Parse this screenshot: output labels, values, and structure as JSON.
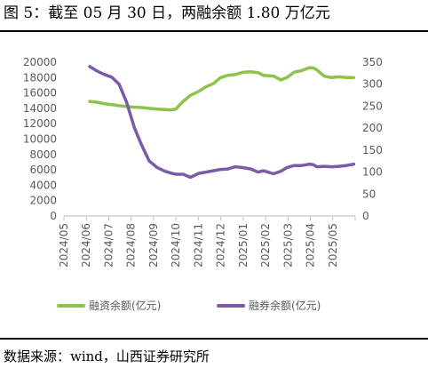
{
  "header": {
    "title": "图 5：截至 05 月 30 日，两融余额 1.80 万亿元"
  },
  "footer": {
    "source": "数据来源：wind，山西证券研究所"
  },
  "colors": {
    "financing": "#8DC34A",
    "securities": "#7B5BA6",
    "axis_text": "#595959",
    "axis_line": "#BFBFBF"
  },
  "chart_data": {
    "type": "line",
    "title": "",
    "xlabel": "",
    "ylabel": "",
    "categories": [
      "2024/05",
      "2024/06",
      "2024/07",
      "2024/08",
      "2024/09",
      "2024/10",
      "2024/11",
      "2024/12",
      "2025/01",
      "2025/02",
      "2025/03",
      "2025/04",
      "2025/05"
    ],
    "y_left": {
      "min": 0,
      "max": 20000,
      "ticks": [
        "0",
        "2000",
        "4000",
        "6000",
        "8000",
        "10000",
        "12000",
        "14000",
        "16000",
        "18000",
        "20000"
      ]
    },
    "y_right": {
      "min": 0,
      "max": 350,
      "ticks": [
        "0",
        "50",
        "100",
        "150",
        "200",
        "250",
        "300",
        "350"
      ]
    },
    "grid": false,
    "legend_position": "bottom",
    "series": [
      {
        "name": "融资余额(亿元)",
        "axis": "left",
        "x": [
          "2024/06/05",
          "2024/06/15",
          "2024/06/25",
          "2024/07/05",
          "2024/07/15",
          "2024/07/25",
          "2024/08/05",
          "2024/08/15",
          "2024/08/25",
          "2024/09/05",
          "2024/09/15",
          "2024/09/23",
          "2024/09/30",
          "2024/10/10",
          "2024/10/20",
          "2024/10/31",
          "2024/11/10",
          "2024/11/20",
          "2024/11/30",
          "2024/12/10",
          "2024/12/20",
          "2024/12/31",
          "2025/01/10",
          "2025/01/20",
          "2025/01/27",
          "2025/02/10",
          "2025/02/20",
          "2025/02/28",
          "2025/03/10",
          "2025/03/20",
          "2025/03/31",
          "2025/04/05",
          "2025/04/10",
          "2025/04/20",
          "2025/04/30",
          "2025/05/10",
          "2025/05/20",
          "2025/05/30"
        ],
        "values": [
          14900,
          14800,
          14600,
          14500,
          14350,
          14250,
          14150,
          14100,
          14000,
          13900,
          13850,
          13800,
          13900,
          14900,
          15700,
          16200,
          16800,
          17200,
          18000,
          18300,
          18400,
          18700,
          18750,
          18650,
          18300,
          18200,
          17700,
          18000,
          18700,
          18900,
          19300,
          19250,
          19000,
          18200,
          18000,
          18100,
          18000,
          18000
        ]
      },
      {
        "name": "融券余额(亿元)",
        "axis": "right",
        "x": [
          "2024/06/05",
          "2024/06/15",
          "2024/06/25",
          "2024/07/05",
          "2024/07/15",
          "2024/07/25",
          "2024/08/05",
          "2024/08/15",
          "2024/08/25",
          "2024/09/05",
          "2024/09/15",
          "2024/09/23",
          "2024/09/30",
          "2024/10/10",
          "2024/10/20",
          "2024/10/31",
          "2024/11/10",
          "2024/11/20",
          "2024/11/30",
          "2024/12/10",
          "2024/12/20",
          "2024/12/31",
          "2025/01/10",
          "2025/01/20",
          "2025/01/27",
          "2025/02/10",
          "2025/02/20",
          "2025/02/28",
          "2025/03/10",
          "2025/03/20",
          "2025/03/31",
          "2025/04/05",
          "2025/04/10",
          "2025/04/20",
          "2025/04/30",
          "2025/05/10",
          "2025/05/20",
          "2025/05/30"
        ],
        "values": [
          340,
          330,
          322,
          316,
          300,
          260,
          200,
          160,
          125,
          110,
          102,
          98,
          95,
          95,
          88,
          97,
          100,
          103,
          106,
          107,
          112,
          110,
          107,
          100,
          103,
          96,
          102,
          110,
          115,
          115,
          118,
          117,
          112,
          113,
          112,
          113,
          115,
          118
        ]
      }
    ]
  }
}
